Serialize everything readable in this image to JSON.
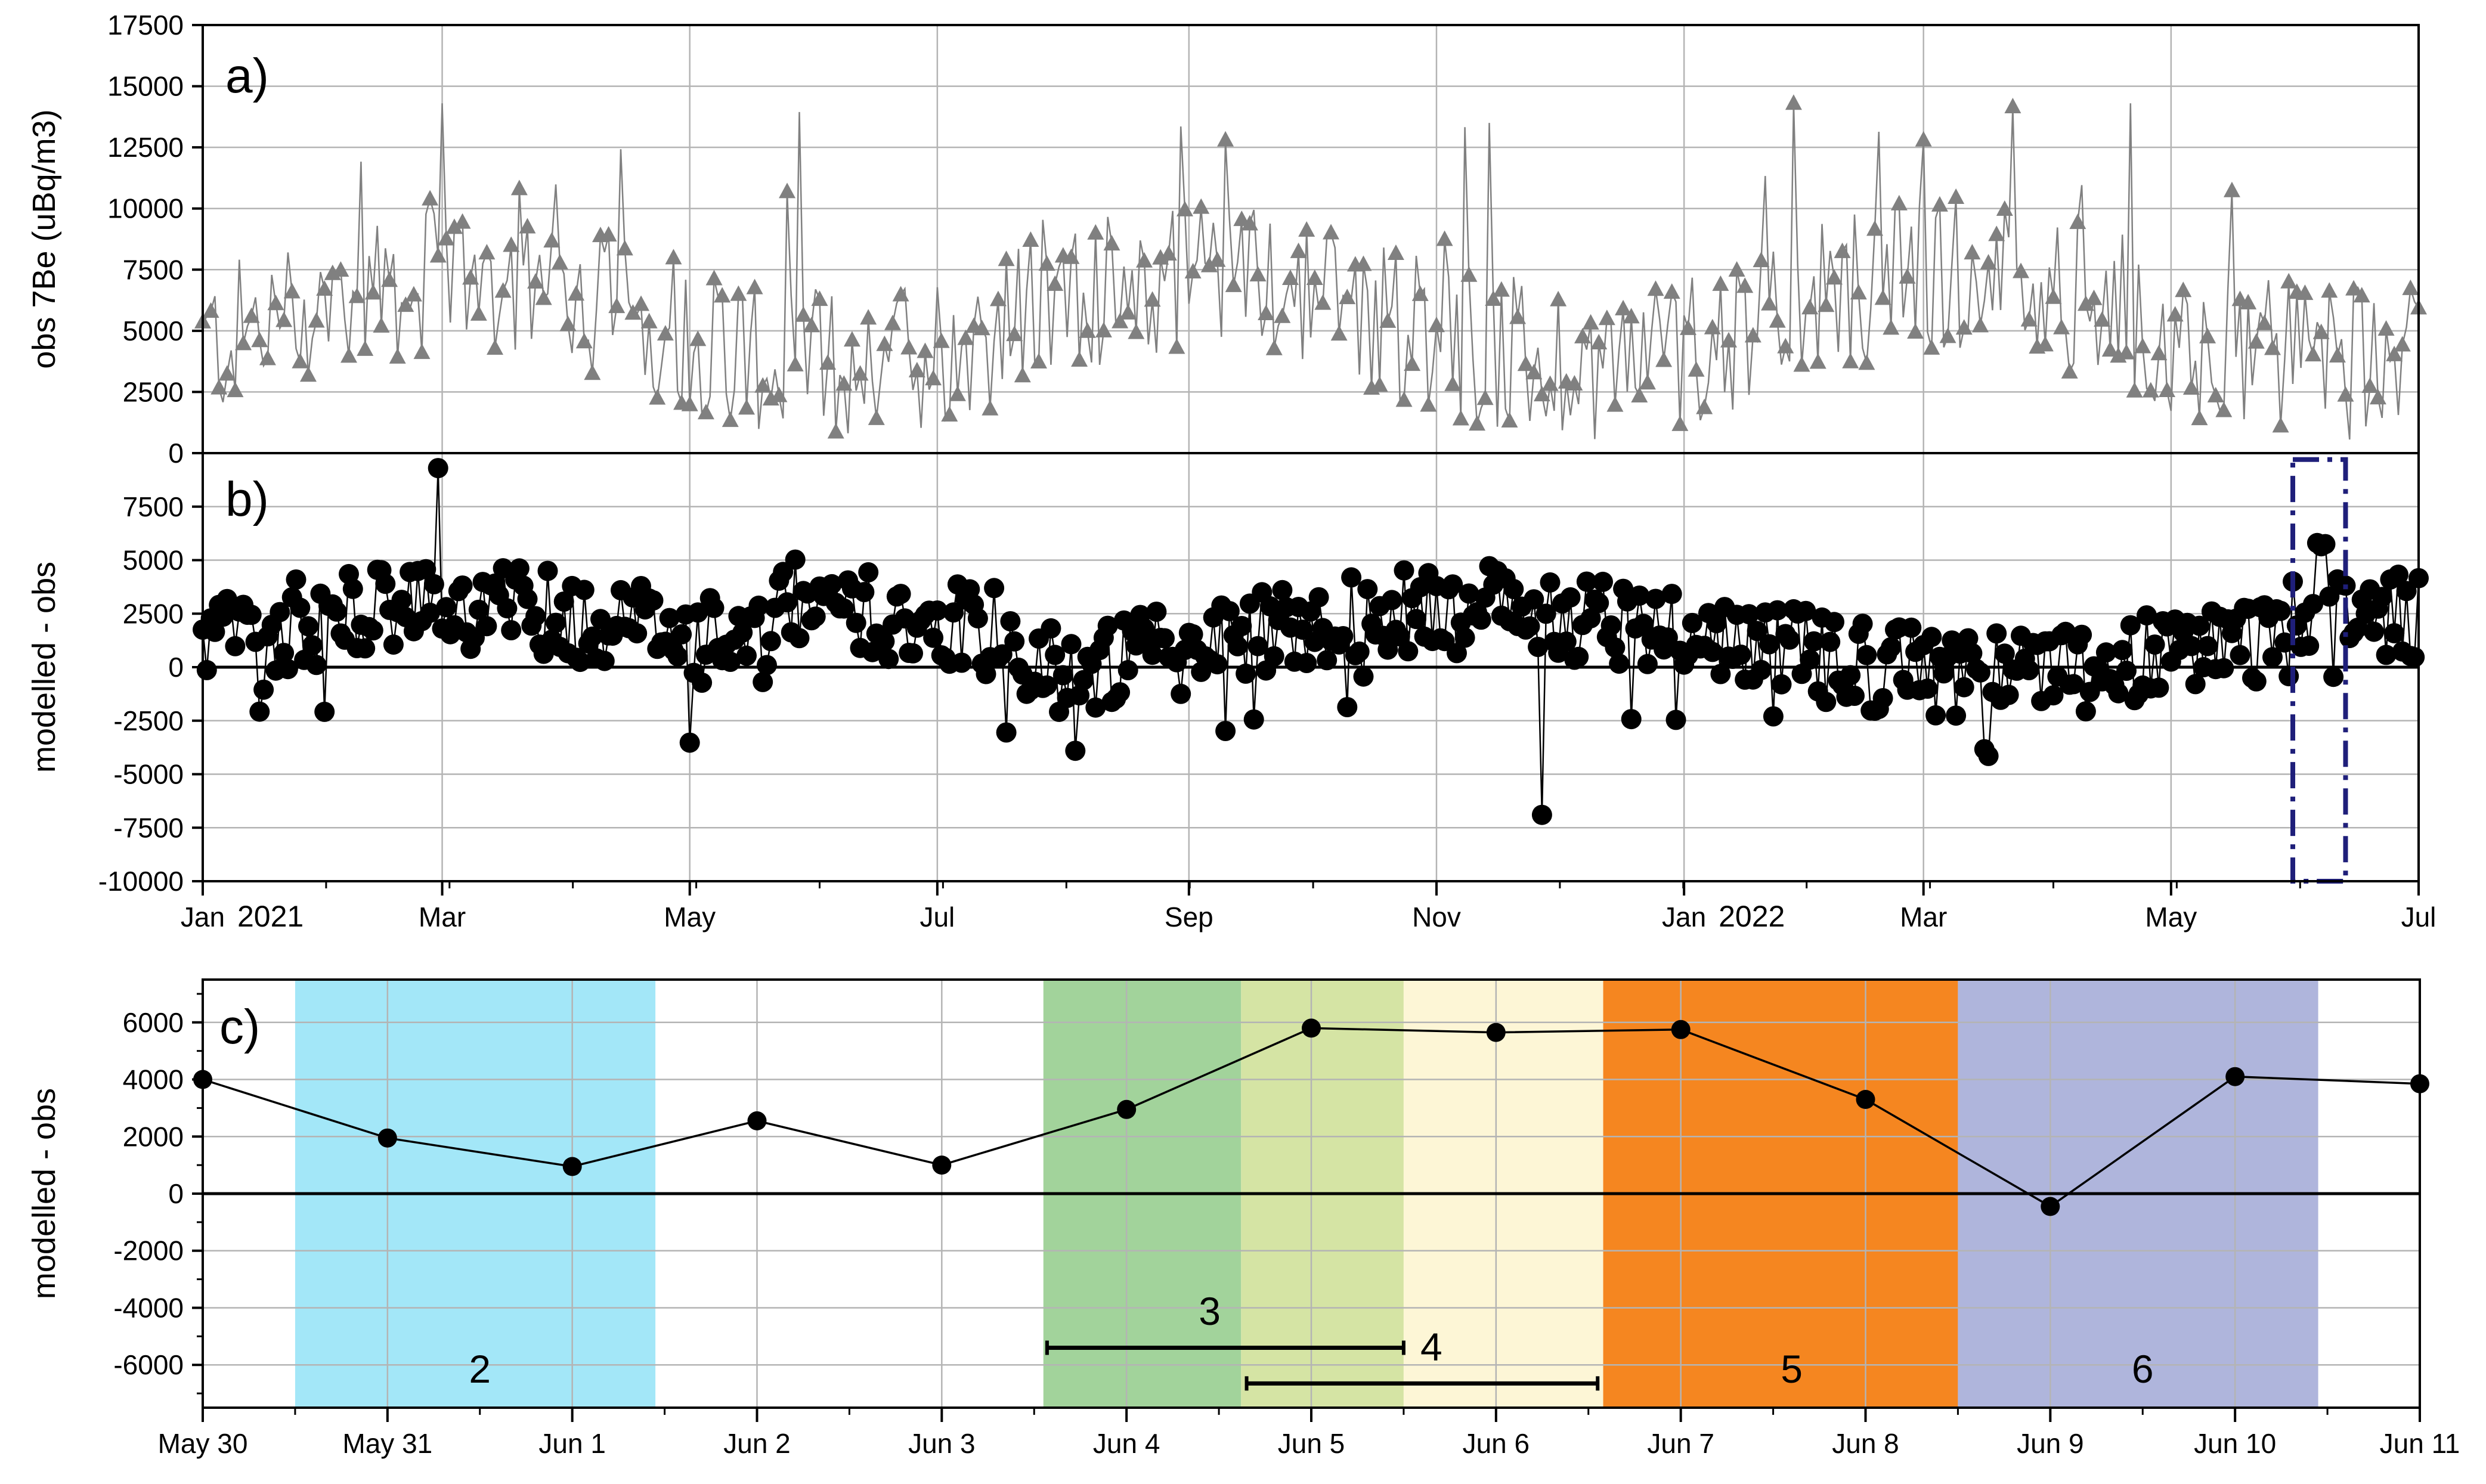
{
  "chart_data": [
    {
      "panel_label": "a)",
      "type": "line",
      "ylabel": "obs 7Be (uBq/m3)",
      "ylim": [
        0,
        17500
      ],
      "yticks": [
        0,
        2500,
        5000,
        7500,
        10000,
        12500,
        15000,
        17500
      ],
      "ytick_labels": [
        "0",
        "2500",
        "5000",
        "7500",
        "10000",
        "12500",
        "15000",
        "17500"
      ],
      "x_range_days": [
        0,
        546
      ],
      "marker": "triangle",
      "color": "#808080",
      "series": [
        {
          "name": "obs 7Be",
          "x": [],
          "y": []
        }
      ]
    },
    {
      "panel_label": "b)",
      "type": "line",
      "ylabel": "modelled - obs",
      "ylim": [
        -10000,
        10000
      ],
      "yticks": [
        -10000,
        -7500,
        -5000,
        -2500,
        0,
        2500,
        5000,
        7500
      ],
      "ytick_labels": [
        "-10000",
        "-7500",
        "-5000",
        "-2500",
        "0",
        "2500",
        "5000",
        "7500"
      ],
      "x_range_days": [
        0,
        546
      ],
      "xtick_days": [
        0,
        59,
        120,
        181,
        243,
        304,
        365,
        424,
        485,
        546
      ],
      "xtick_labels": [
        "Jan",
        "Mar",
        "May",
        "Jul",
        "Sep",
        "Nov",
        "Jan",
        "Mar",
        "May",
        "Jul"
      ],
      "year_labels": [
        {
          "day": 0,
          "text": "2021"
        },
        {
          "day": 365,
          "text": "2022"
        }
      ],
      "highlight_box": {
        "x_days": [
          515,
          528
        ],
        "ylim": [
          -10000,
          9700
        ],
        "color": "#1f1f7a",
        "style": "dash-dot"
      },
      "marker": "circle",
      "color": "#000000",
      "series": [
        {
          "name": "modelled - obs",
          "x": [],
          "y": []
        }
      ]
    },
    {
      "panel_label": "c)",
      "type": "line",
      "ylabel": "modelled - obs",
      "ylim": [
        -7500,
        7500
      ],
      "yticks": [
        -6000,
        -4000,
        -2000,
        0,
        2000,
        4000,
        6000
      ],
      "ytick_labels": [
        "-6000",
        "-4000",
        "-2000",
        "0",
        "2000",
        "4000",
        "6000"
      ],
      "x_range_days": [
        0,
        12
      ],
      "xtick_labels": [
        "May 30",
        "May 31",
        "Jun 1",
        "Jun 2",
        "Jun 3",
        "Jun 4",
        "Jun 5",
        "Jun 6",
        "Jun 7",
        "Jun 8",
        "Jun 9",
        "Jun 10",
        "Jun 11"
      ],
      "series": [
        {
          "name": "modelled - obs",
          "x": [
            0,
            1,
            2,
            3,
            4,
            5,
            6,
            7,
            8,
            9,
            10,
            11,
            12
          ],
          "y": [
            4000,
            1950,
            950,
            2550,
            1000,
            2950,
            5800,
            5650,
            5750,
            3300,
            -450,
            4100,
            3850
          ]
        }
      ],
      "bands": [
        {
          "label": "2",
          "x0": 0.5,
          "x1": 2.45,
          "color": "#a3e7f8",
          "label_x": 1.5
        },
        {
          "label": "",
          "x0": 4.55,
          "x1": 5.62,
          "color": "#a2d39b"
        },
        {
          "label": "",
          "x0": 5.62,
          "x1": 6.5,
          "color": "#d5e4a4"
        },
        {
          "label": "",
          "x0": 6.5,
          "x1": 7.58,
          "color": "#fdf6d6"
        },
        {
          "label": "5",
          "x0": 7.58,
          "x1": 9.5,
          "color": "#f58620",
          "label_x": 8.6
        },
        {
          "label": "6",
          "x0": 9.5,
          "x1": 11.45,
          "color": "#afb5dc",
          "label_x": 10.5
        }
      ],
      "ranges": [
        {
          "label": "3",
          "x0": 4.57,
          "x1": 6.5,
          "y": -5400,
          "label_x": 5.45,
          "label_y": -4600
        },
        {
          "label": "4",
          "x0": 5.65,
          "x1": 7.55,
          "y": -6650,
          "label_x": 6.65,
          "label_y": -5850
        }
      ]
    }
  ]
}
